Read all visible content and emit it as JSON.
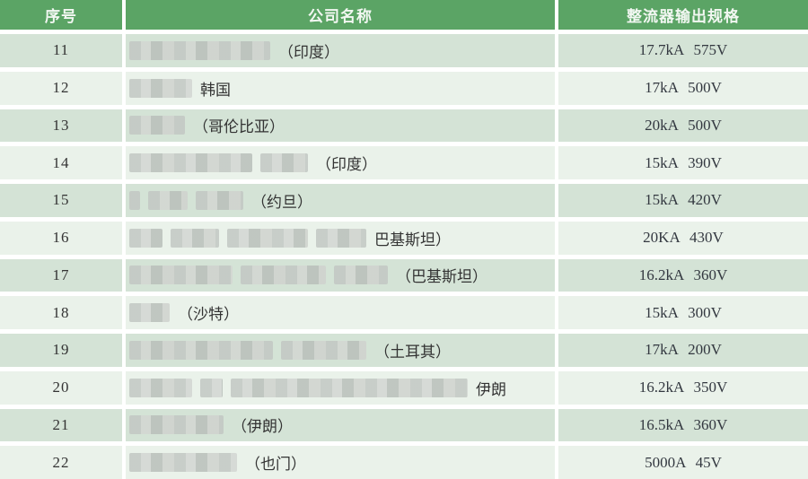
{
  "colors": {
    "header_green": "#5ba465",
    "header_text": "#f2f7f2",
    "row_dark": "#d4e3d6",
    "row_light": "#eaf2ea",
    "text": "#333333",
    "redact_gray_a": "#c2c7c3",
    "redact_gray_b": "#d3d6d2"
  },
  "table": {
    "headers": [
      {
        "id": "index",
        "label": "序号"
      },
      {
        "id": "company",
        "label": "公司名称"
      },
      {
        "id": "spec",
        "label": "整流器输出规格"
      }
    ],
    "rows": [
      {
        "index": "11",
        "country": "（印度）",
        "spec": "17.7kA 575V",
        "redact": [
          157
        ]
      },
      {
        "index": "12",
        "country": "韩国",
        "spec": "17kA 500V",
        "redact": [
          70
        ]
      },
      {
        "index": "13",
        "country": "（哥伦比亚）",
        "spec": "20kA 500V",
        "redact": [
          62
        ]
      },
      {
        "index": "14",
        "country": "（印度）",
        "spec": "15kA 390V",
        "redact": [
          137,
          53
        ]
      },
      {
        "index": "15",
        "country": "（约旦）",
        "spec": "15kA 420V",
        "redact": [
          12,
          44,
          53
        ]
      },
      {
        "index": "16",
        "country": "巴基斯坦）",
        "spec": "20KA 430V",
        "redact": [
          37,
          54,
          90,
          56
        ]
      },
      {
        "index": "17",
        "country": "（巴基斯坦）",
        "spec": "16.2kA 360V",
        "redact": [
          115,
          95,
          60
        ]
      },
      {
        "index": "18",
        "country": "（沙特）",
        "spec": "15kA 300V",
        "redact": [
          45
        ]
      },
      {
        "index": "19",
        "country": "（土耳其）",
        "spec": "17kA 200V",
        "redact": [
          160,
          95
        ]
      },
      {
        "index": "20",
        "country": "伊朗",
        "spec": "16.2kA 350V",
        "redact": [
          70,
          25,
          264
        ]
      },
      {
        "index": "21",
        "country": "（伊朗）",
        "spec": "16.5kA 360V",
        "redact": [
          105
        ]
      },
      {
        "index": "22",
        "country": "（也门）",
        "spec": "5000A 45V",
        "redact": [
          120
        ]
      }
    ]
  }
}
